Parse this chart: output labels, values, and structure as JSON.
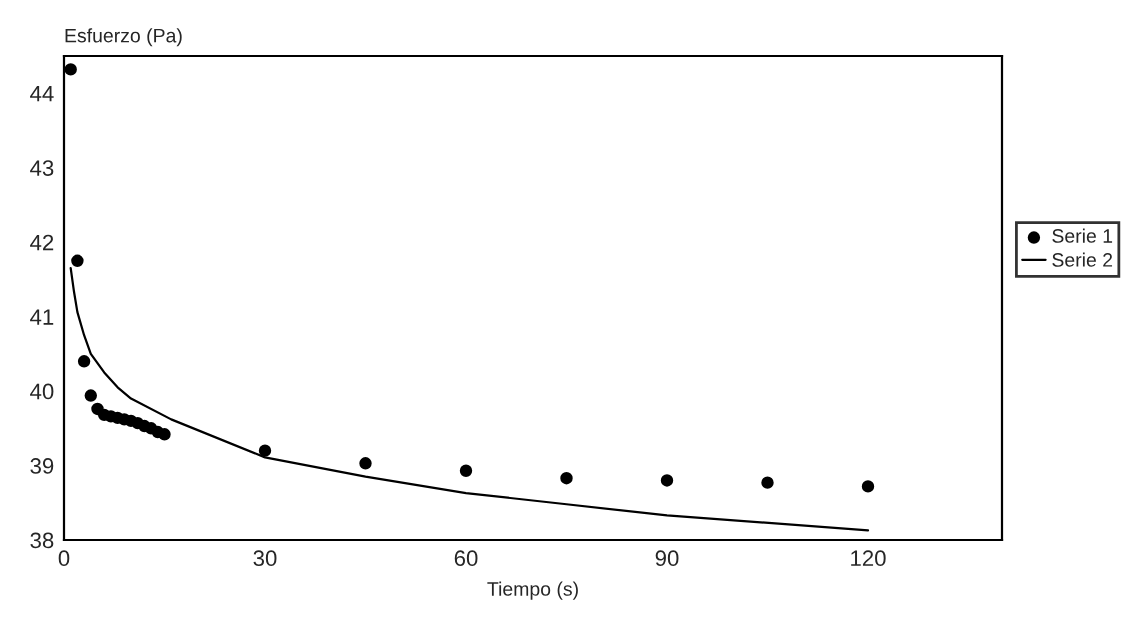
{
  "chart_data": {
    "type": "scatter",
    "ylabel": "Esfuerzo (Pa)",
    "xlabel": "Tiempo (s)",
    "xlim": [
      0,
      140
    ],
    "ylim": [
      38,
      44.5
    ],
    "xticks": [
      0,
      30,
      60,
      90,
      120
    ],
    "yticks": [
      38,
      39,
      40,
      41,
      42,
      43,
      44
    ],
    "grid": false,
    "legend": "right",
    "series": [
      {
        "name": "Serie 1",
        "marker": "circle",
        "color": "#000000",
        "x": [
          1,
          2,
          3,
          4,
          5,
          6,
          7,
          8,
          9,
          10,
          11,
          12,
          13,
          14,
          15,
          30,
          45,
          60,
          75,
          90,
          105,
          120
        ],
        "values": [
          44.32,
          41.75,
          40.4,
          39.94,
          39.76,
          39.68,
          39.66,
          39.64,
          39.62,
          39.6,
          39.57,
          39.53,
          39.5,
          39.45,
          39.42,
          39.2,
          39.03,
          38.93,
          38.83,
          38.8,
          38.77,
          38.72
        ]
      },
      {
        "name": "Serie 2",
        "type": "line",
        "marker": "none",
        "line_style": "solid",
        "color": "#000000",
        "x": [
          1,
          1.5,
          2,
          3,
          4,
          6,
          8,
          10,
          16,
          30,
          45,
          60,
          75,
          90,
          120
        ],
        "values": [
          41.65,
          41.33,
          41.06,
          40.75,
          40.5,
          40.25,
          40.05,
          39.9,
          39.62,
          39.11,
          38.85,
          38.63,
          38.48,
          38.33,
          38.13
        ]
      }
    ]
  }
}
